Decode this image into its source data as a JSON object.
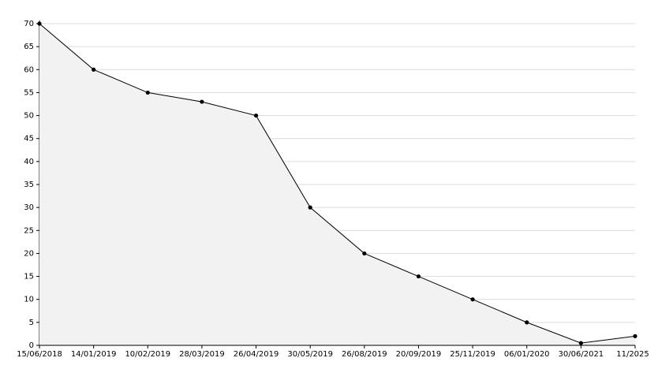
{
  "chart_data": {
    "type": "line",
    "categories": [
      "15/06/2018",
      "14/01/2019",
      "10/02/2019",
      "28/03/2019",
      "26/04/2019",
      "30/05/2019",
      "26/08/2019",
      "20/09/2019",
      "25/11/2019",
      "06/01/2020",
      "30/06/2021",
      "11/2025"
    ],
    "values": [
      70,
      60,
      55,
      53,
      50,
      30,
      20,
      15,
      10,
      5,
      0.5,
      2
    ],
    "color": "#000000",
    "area_color": "#f2f2f2",
    "ylim": [
      0,
      70
    ],
    "yticks": [
      0,
      5,
      10,
      15,
      20,
      25,
      30,
      35,
      40,
      45,
      50,
      55,
      60,
      65,
      70
    ],
    "grid": true
  }
}
